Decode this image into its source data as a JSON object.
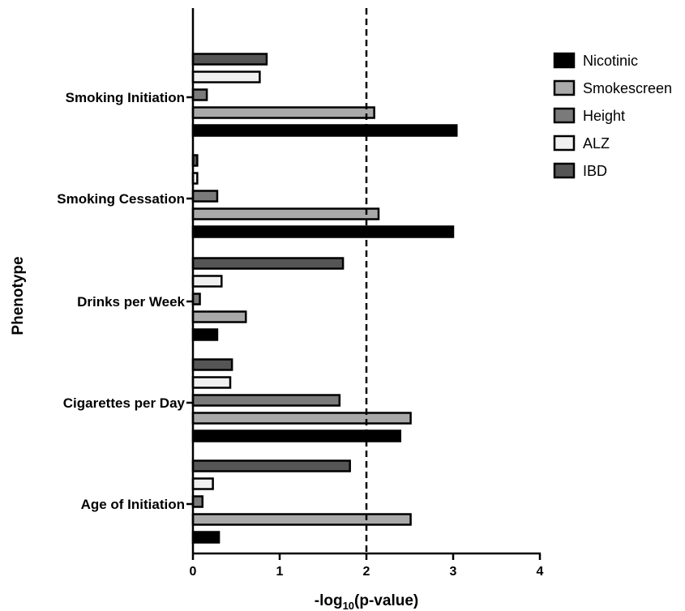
{
  "chart_data": {
    "type": "bar",
    "orientation": "horizontal",
    "xlabel_prefix": "-log",
    "xlabel_sub": "10",
    "xlabel_suffix": "(p-value)",
    "ylabel": "Phenotype",
    "xlim": [
      0,
      4
    ],
    "x_ticks": [
      "0",
      "1",
      "2",
      "3",
      "4"
    ],
    "threshold_line": 2,
    "legend_position": "top-right",
    "categories": [
      "Smoking Initiation",
      "Smoking Cessation",
      "Drinks per Week",
      "Cigarettes per Day",
      "Age of Initiation"
    ],
    "series": [
      {
        "name": "IBD",
        "color": "#555555",
        "values": [
          0.85,
          0.05,
          1.73,
          0.45,
          1.81
        ]
      },
      {
        "name": "ALZ",
        "color": "#f0f0f0",
        "values": [
          0.77,
          0.05,
          0.33,
          0.43,
          0.23
        ]
      },
      {
        "name": "Height",
        "color": "#7a7a7a",
        "values": [
          0.16,
          0.28,
          0.08,
          1.69,
          0.11
        ]
      },
      {
        "name": "Smokescreen",
        "color": "#a9a9a9",
        "values": [
          2.09,
          2.14,
          0.61,
          2.51,
          2.51
        ]
      },
      {
        "name": "Nicotinic",
        "color": "#000000",
        "values": [
          3.04,
          3.0,
          0.28,
          2.39,
          0.3
        ]
      }
    ],
    "legend_order": [
      "Nicotinic",
      "Smokescreen",
      "Height",
      "ALZ",
      "IBD"
    ]
  }
}
